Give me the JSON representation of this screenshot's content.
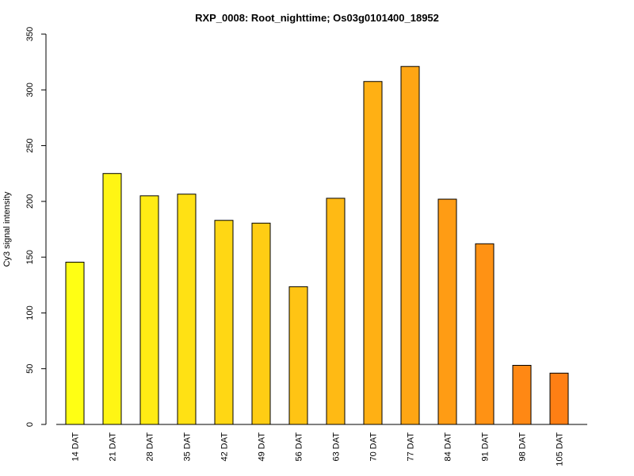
{
  "chart_data": {
    "type": "bar",
    "title": "RXP_0008: Root_nighttime; Os03g0101400_18952",
    "xlabel": "",
    "ylabel": "Cy3 signal intensity",
    "ylim": [
      0,
      350
    ],
    "yticks": [
      0,
      50,
      100,
      150,
      200,
      250,
      300,
      350
    ],
    "grid": false,
    "legend": "none",
    "categories": [
      "14 DAT",
      "21 DAT",
      "28 DAT",
      "35 DAT",
      "42 DAT",
      "49 DAT",
      "56 DAT",
      "63 DAT",
      "70 DAT",
      "77 DAT",
      "84 DAT",
      "91 DAT",
      "98 DAT",
      "105 DAT"
    ],
    "values": [
      145.5,
      225,
      205,
      206.5,
      183,
      180.5,
      123.5,
      202.8,
      307.5,
      321,
      202,
      162,
      53,
      46
    ],
    "colors": [
      "#FFFF14",
      "#FFF514",
      "#FFEB14",
      "#FFE114",
      "#FFD714",
      "#FFCD14",
      "#FFC414",
      "#FFBA14",
      "#FFB014",
      "#FFA614",
      "#FF9C14",
      "#FF9214",
      "#FF8814",
      "#FF7F14"
    ]
  }
}
